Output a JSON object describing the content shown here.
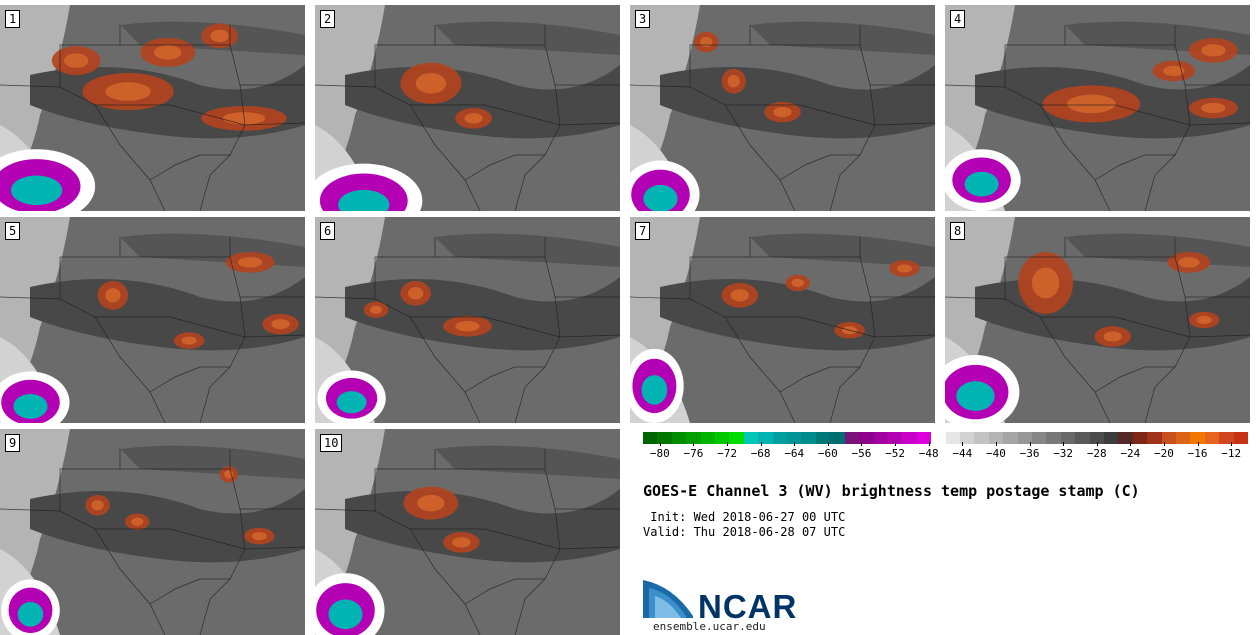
{
  "panels": [
    {
      "num": "1",
      "hot": [
        [
          0.42,
          0.42,
          0.15,
          0.09
        ],
        [
          0.25,
          0.27,
          0.08,
          0.07
        ],
        [
          0.55,
          0.23,
          0.09,
          0.07
        ],
        [
          0.8,
          0.55,
          0.14,
          0.06
        ],
        [
          0.72,
          0.15,
          0.06,
          0.06
        ]
      ],
      "cold": [
        [
          0.12,
          0.88,
          0.12,
          0.12
        ]
      ]
    },
    {
      "num": "2",
      "hot": [
        [
          0.38,
          0.38,
          0.1,
          0.1
        ],
        [
          0.52,
          0.55,
          0.06,
          0.05
        ]
      ],
      "cold": [
        [
          0.16,
          0.95,
          0.12,
          0.12
        ]
      ]
    },
    {
      "num": "3",
      "hot": [
        [
          0.34,
          0.37,
          0.04,
          0.06
        ],
        [
          0.5,
          0.52,
          0.06,
          0.05
        ],
        [
          0.25,
          0.18,
          0.04,
          0.05
        ]
      ],
      "cold": [
        [
          0.1,
          0.92,
          0.08,
          0.11
        ]
      ]
    },
    {
      "num": "4",
      "hot": [
        [
          0.48,
          0.48,
          0.16,
          0.09
        ],
        [
          0.88,
          0.22,
          0.08,
          0.06
        ],
        [
          0.75,
          0.32,
          0.07,
          0.05
        ],
        [
          0.88,
          0.5,
          0.08,
          0.05
        ]
      ],
      "cold": [
        [
          0.12,
          0.85,
          0.08,
          0.1
        ]
      ]
    },
    {
      "num": "5",
      "hot": [
        [
          0.37,
          0.38,
          0.05,
          0.07
        ],
        [
          0.82,
          0.22,
          0.08,
          0.05
        ],
        [
          0.92,
          0.52,
          0.06,
          0.05
        ],
        [
          0.62,
          0.6,
          0.05,
          0.04
        ]
      ],
      "cold": [
        [
          0.1,
          0.9,
          0.08,
          0.1
        ]
      ]
    },
    {
      "num": "6",
      "hot": [
        [
          0.33,
          0.37,
          0.05,
          0.06
        ],
        [
          0.5,
          0.53,
          0.08,
          0.05
        ],
        [
          0.2,
          0.45,
          0.04,
          0.04
        ]
      ],
      "cold": [
        [
          0.12,
          0.88,
          0.07,
          0.09
        ]
      ]
    },
    {
      "num": "7",
      "hot": [
        [
          0.36,
          0.38,
          0.06,
          0.06
        ],
        [
          0.55,
          0.32,
          0.04,
          0.04
        ],
        [
          0.9,
          0.25,
          0.05,
          0.04
        ],
        [
          0.72,
          0.55,
          0.05,
          0.04
        ]
      ],
      "cold": [
        [
          0.08,
          0.82,
          0.06,
          0.12
        ]
      ]
    },
    {
      "num": "8",
      "hot": [
        [
          0.33,
          0.32,
          0.09,
          0.15
        ],
        [
          0.8,
          0.22,
          0.07,
          0.05
        ],
        [
          0.55,
          0.58,
          0.06,
          0.05
        ],
        [
          0.85,
          0.5,
          0.05,
          0.04
        ]
      ],
      "cold": [
        [
          0.1,
          0.85,
          0.09,
          0.12
        ]
      ]
    },
    {
      "num": "9",
      "hot": [
        [
          0.32,
          0.37,
          0.04,
          0.05
        ],
        [
          0.45,
          0.45,
          0.04,
          0.04
        ],
        [
          0.75,
          0.22,
          0.03,
          0.04
        ],
        [
          0.85,
          0.52,
          0.05,
          0.04
        ]
      ],
      "cold": [
        [
          0.1,
          0.88,
          0.06,
          0.1
        ]
      ]
    },
    {
      "num": "10",
      "hot": [
        [
          0.38,
          0.36,
          0.09,
          0.08
        ],
        [
          0.48,
          0.55,
          0.06,
          0.05
        ]
      ],
      "cold": [
        [
          0.1,
          0.88,
          0.08,
          0.12
        ]
      ]
    }
  ],
  "colorbar": {
    "colors": [
      "#006400",
      "#007800",
      "#008c00",
      "#00a000",
      "#00b400",
      "#00c800",
      "#00dc00",
      "#00c8b4",
      "#00b4b4",
      "#00a0a0",
      "#009696",
      "#008c8c",
      "#007878",
      "#006e6e",
      "#781478",
      "#8c008c",
      "#a000a0",
      "#b400b4",
      "#c800c8",
      "#dc00dc",
      "#ffffff",
      "#e6e6e6",
      "#d2d2d2",
      "#c3c3c3",
      "#b4b4b4",
      "#a5a5a5",
      "#969696",
      "#878787",
      "#787878",
      "#696969",
      "#5a5a5a",
      "#4b4b4b",
      "#3c3c3c",
      "#552828",
      "#7d2814",
      "#a03219",
      "#c8501e",
      "#dc6414",
      "#f07800",
      "#e6641e",
      "#d2461e",
      "#c83214"
    ],
    "ticks": [
      "−80",
      "−76",
      "−72",
      "−68",
      "−64",
      "−60",
      "−56",
      "−52",
      "−48",
      "−44",
      "−40",
      "−36",
      "−32",
      "−28",
      "−24",
      "−20",
      "−16",
      "−12"
    ],
    "min": -82,
    "max": -10
  },
  "title": "GOES-E Channel 3 (WV) brightness temp postage stamp (C)",
  "init": " Init: Wed 2018-06-27 00 UTC",
  "valid": "Valid: Thu 2018-06-28 07 UTC",
  "logo_text": "NCAR",
  "url": "ensemble.ucar.edu"
}
